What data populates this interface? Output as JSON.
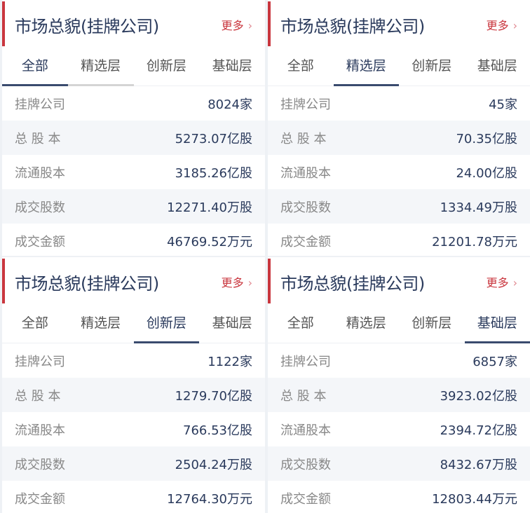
{
  "panels": [
    {
      "title": "市场总貌(挂牌公司)",
      "more": "更多",
      "active_tab": 0,
      "tabs": [
        "全部",
        "精选层",
        "创新层",
        "基础层"
      ],
      "rows": [
        {
          "label": "挂牌公司",
          "value": "8024家"
        },
        {
          "label": "总 股 本",
          "value": "5273.07亿股"
        },
        {
          "label": "流通股本",
          "value": "3185.26亿股"
        },
        {
          "label": "成交股数",
          "value": "12271.40万股"
        },
        {
          "label": "成交金额",
          "value": "46769.52万元"
        }
      ]
    },
    {
      "title": "市场总貌(挂牌公司)",
      "more": "更多",
      "active_tab": 1,
      "tabs": [
        "全部",
        "精选层",
        "创新层",
        "基础层"
      ],
      "rows": [
        {
          "label": "挂牌公司",
          "value": "45家"
        },
        {
          "label": "总 股 本",
          "value": "70.35亿股"
        },
        {
          "label": "流通股本",
          "value": "24.00亿股"
        },
        {
          "label": "成交股数",
          "value": "1334.49万股"
        },
        {
          "label": "成交金额",
          "value": "21201.78万元"
        }
      ]
    },
    {
      "title": "市场总貌(挂牌公司)",
      "more": "更多",
      "active_tab": 2,
      "tabs": [
        "全部",
        "精选层",
        "创新层",
        "基础层"
      ],
      "rows": [
        {
          "label": "挂牌公司",
          "value": "1122家"
        },
        {
          "label": "总 股 本",
          "value": "1279.70亿股"
        },
        {
          "label": "流通股本",
          "value": "766.53亿股"
        },
        {
          "label": "成交股数",
          "value": "2504.24万股"
        },
        {
          "label": "成交金额",
          "value": "12764.30万元"
        }
      ]
    },
    {
      "title": "市场总貌(挂牌公司)",
      "more": "更多",
      "active_tab": 3,
      "tabs": [
        "全部",
        "精选层",
        "创新层",
        "基础层"
      ],
      "rows": [
        {
          "label": "挂牌公司",
          "value": "6857家"
        },
        {
          "label": "总 股 本",
          "value": "3923.02亿股"
        },
        {
          "label": "流通股本",
          "value": "2394.72亿股"
        },
        {
          "label": "成交股数",
          "value": "8432.67万股"
        },
        {
          "label": "成交金额",
          "value": "12803.44万元"
        }
      ]
    }
  ],
  "colors": {
    "accent": "#c9363e",
    "title": "#2a3a5c",
    "tab_underline": "#3a4b6e"
  },
  "icons": {
    "more": "chevron-right-icon"
  }
}
